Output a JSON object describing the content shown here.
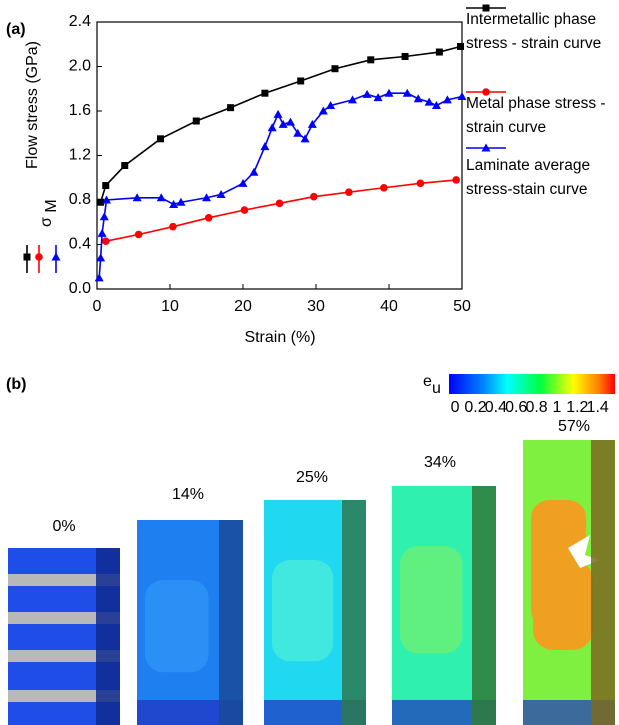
{
  "panel_labels": [
    "(a)",
    "(b)"
  ],
  "chart_data": {
    "type": "line",
    "x_label": "Strain (%)",
    "y_label": "Flow stress (GPa)",
    "y_annotation": "σ",
    "y_annotation_sub": "M",
    "xlim": [
      0,
      50
    ],
    "xticks": [
      0,
      10,
      20,
      30,
      40,
      50
    ],
    "ylim": [
      0,
      2.4
    ],
    "yticks": [
      {
        "value": 0,
        "label": "0.0"
      },
      0.4,
      0.8,
      1.2,
      1.6,
      {
        "value": 2,
        "label": "2.0"
      },
      2.4
    ],
    "legend": "right",
    "series": [
      {
        "name": "Intermetallic phase stress - strain curve",
        "color": "#000000",
        "marker": "square",
        "x": [
          0.5,
          1.2,
          3.8,
          8.7,
          13.6,
          18.3,
          23,
          27.9,
          32.6,
          37.5,
          42.2,
          46.9,
          49.8
        ],
        "values": [
          0.78,
          0.93,
          1.11,
          1.35,
          1.51,
          1.63,
          1.76,
          1.87,
          1.98,
          2.06,
          2.09,
          2.13,
          2.18
        ]
      },
      {
        "name": "Metal phase stress - strain curve",
        "color": "#ff0000",
        "marker": "circle",
        "x": [
          1.2,
          5.7,
          10.4,
          15.3,
          20.2,
          25,
          29.7,
          34.5,
          39.3,
          44.3,
          49.2
        ],
        "values": [
          0.43,
          0.49,
          0.56,
          0.64,
          0.71,
          0.77,
          0.83,
          0.87,
          0.91,
          0.95,
          0.98
        ]
      },
      {
        "name": "Laminate average stress-stain curve",
        "color": "#0000ff",
        "marker": "triangle",
        "x": [
          0.3,
          0.5,
          0.7,
          1.0,
          1.3,
          5.5,
          8.8,
          10.5,
          11.5,
          15,
          17,
          20,
          21.5,
          23,
          24,
          24.8,
          25.5,
          26.5,
          27.5,
          28.5,
          29.5,
          31,
          32,
          35,
          37,
          38.5,
          40,
          42.5,
          44,
          45.5,
          46.5,
          48,
          50
        ],
        "values": [
          0.1,
          0.28,
          0.5,
          0.65,
          0.8,
          0.82,
          0.82,
          0.76,
          0.78,
          0.82,
          0.85,
          0.95,
          1.05,
          1.28,
          1.45,
          1.57,
          1.48,
          1.5,
          1.4,
          1.35,
          1.48,
          1.6,
          1.65,
          1.7,
          1.75,
          1.72,
          1.76,
          1.76,
          1.71,
          1.68,
          1.65,
          1.7,
          1.73
        ]
      }
    ]
  },
  "figure_b": {
    "colorbar": {
      "label": "e",
      "label_sub": "u",
      "lim": [
        -0.06,
        1.57
      ],
      "ticks": [
        0,
        0.2,
        0.4,
        0.6,
        0.8,
        1,
        1.2,
        1.4
      ]
    },
    "specimens": [
      "0%",
      "14%",
      "25%",
      "34%",
      "57%"
    ]
  }
}
